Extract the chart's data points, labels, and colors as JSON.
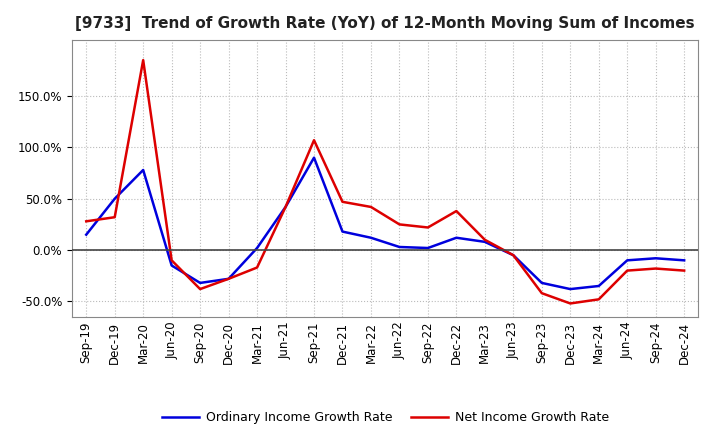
{
  "title": "[9733]  Trend of Growth Rate (YoY) of 12-Month Moving Sum of Incomes",
  "x_labels": [
    "Sep-19",
    "Dec-19",
    "Mar-20",
    "Jun-20",
    "Sep-20",
    "Dec-20",
    "Mar-21",
    "Jun-21",
    "Sep-21",
    "Dec-21",
    "Mar-22",
    "Jun-22",
    "Sep-22",
    "Dec-22",
    "Mar-23",
    "Jun-23",
    "Sep-23",
    "Dec-23",
    "Mar-24",
    "Jun-24",
    "Sep-24",
    "Dec-24"
  ],
  "ordinary_income": [
    15,
    50,
    78,
    -15,
    -32,
    -28,
    2,
    42,
    90,
    18,
    12,
    3,
    2,
    12,
    8,
    -5,
    -32,
    -38,
    -35,
    -10,
    -8,
    -10
  ],
  "net_income": [
    28,
    32,
    185,
    -10,
    -38,
    -28,
    -17,
    42,
    107,
    47,
    42,
    25,
    22,
    38,
    10,
    -5,
    -42,
    -52,
    -48,
    -20,
    -18,
    -20
  ],
  "ordinary_color": "#0000dd",
  "net_color": "#dd0000",
  "ylim": [
    -65,
    205
  ],
  "yticks": [
    -50.0,
    0.0,
    50.0,
    100.0,
    150.0
  ],
  "legend_ordinary": "Ordinary Income Growth Rate",
  "legend_net": "Net Income Growth Rate",
  "bg_color": "#ffffff",
  "plot_bg_color": "#ffffff",
  "grid_color": "#bbbbbb",
  "zero_line_color": "#444444",
  "title_fontsize": 11,
  "tick_fontsize": 8.5,
  "legend_fontsize": 9
}
